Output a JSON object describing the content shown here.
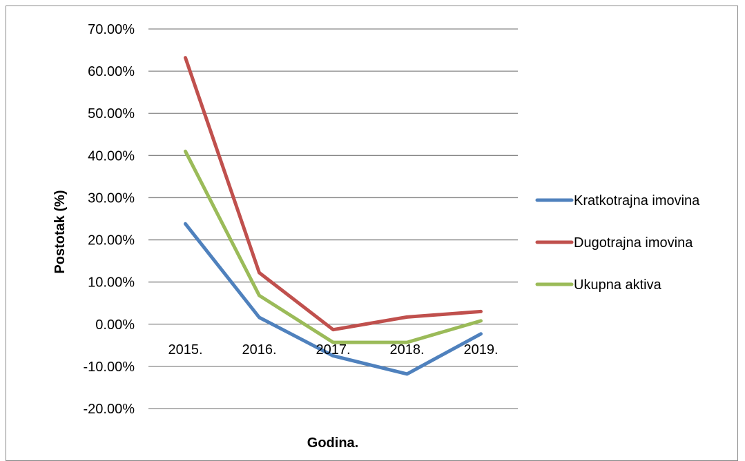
{
  "chart_data": {
    "type": "line",
    "title": "",
    "xlabel": "Godina.",
    "ylabel": "Postotak (%)",
    "categories": [
      "2015.",
      "2016.",
      "2017.",
      "2018.",
      "2019."
    ],
    "ylim": [
      -20,
      70
    ],
    "ytick_step": 10,
    "ytick_labels": [
      "-20.00%",
      "-10.00%",
      "0.00%",
      "10.00%",
      "20.00%",
      "30.00%",
      "40.00%",
      "50.00%",
      "60.00%",
      "70.00%"
    ],
    "grid": true,
    "legend_position": "right",
    "series": [
      {
        "name": "Kratkotrajna imovina",
        "color": "#4F81BD",
        "values": [
          23.8,
          1.6,
          -7.5,
          -11.8,
          -2.3
        ]
      },
      {
        "name": "Dugotrajna imovina",
        "color": "#C0504D",
        "values": [
          63.2,
          12.2,
          -1.3,
          1.7,
          3.0
        ]
      },
      {
        "name": "Ukupna aktiva",
        "color": "#9BBB59",
        "values": [
          41.0,
          6.8,
          -4.3,
          -4.3,
          0.8
        ]
      }
    ]
  }
}
